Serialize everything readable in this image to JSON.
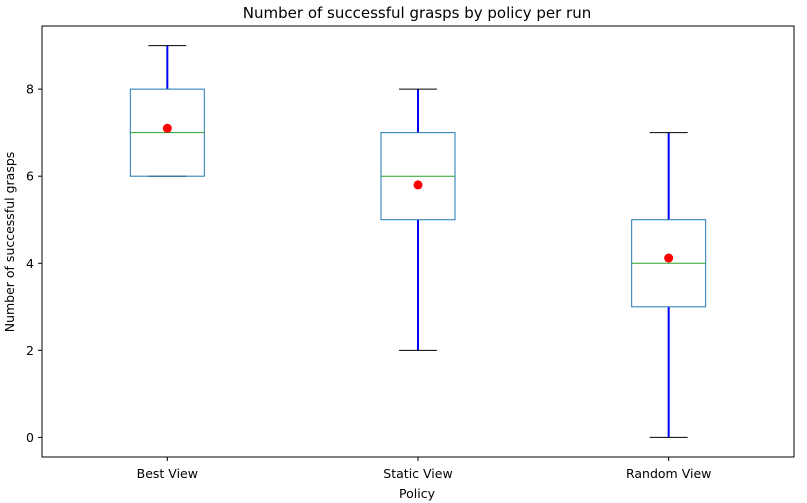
{
  "chart_data": {
    "type": "box",
    "title": "Number of successful grasps by policy per run",
    "xlabel": "Policy",
    "ylabel": "Number of successful grasps",
    "categories": [
      "Best View",
      "Static View",
      "Random View"
    ],
    "boxes": [
      {
        "category": "Best View",
        "min": 6,
        "q1": 6,
        "median": 7,
        "q3": 8,
        "max": 9,
        "mean": 7.1
      },
      {
        "category": "Static View",
        "min": 2,
        "q1": 5,
        "median": 6,
        "q3": 7,
        "max": 8,
        "mean": 5.8
      },
      {
        "category": "Random View",
        "min": 0,
        "q1": 3,
        "median": 4,
        "q3": 5,
        "max": 7,
        "mean": 4.12
      }
    ],
    "yticks": [
      0,
      2,
      4,
      6,
      8
    ],
    "ylim": [
      -0.45,
      9.45
    ],
    "grid": false,
    "colors": {
      "box": "#1f77b4",
      "median": "#2ca02c",
      "whisker": "#0000ff",
      "cap": "#000000",
      "mean": "#ff0000"
    }
  }
}
